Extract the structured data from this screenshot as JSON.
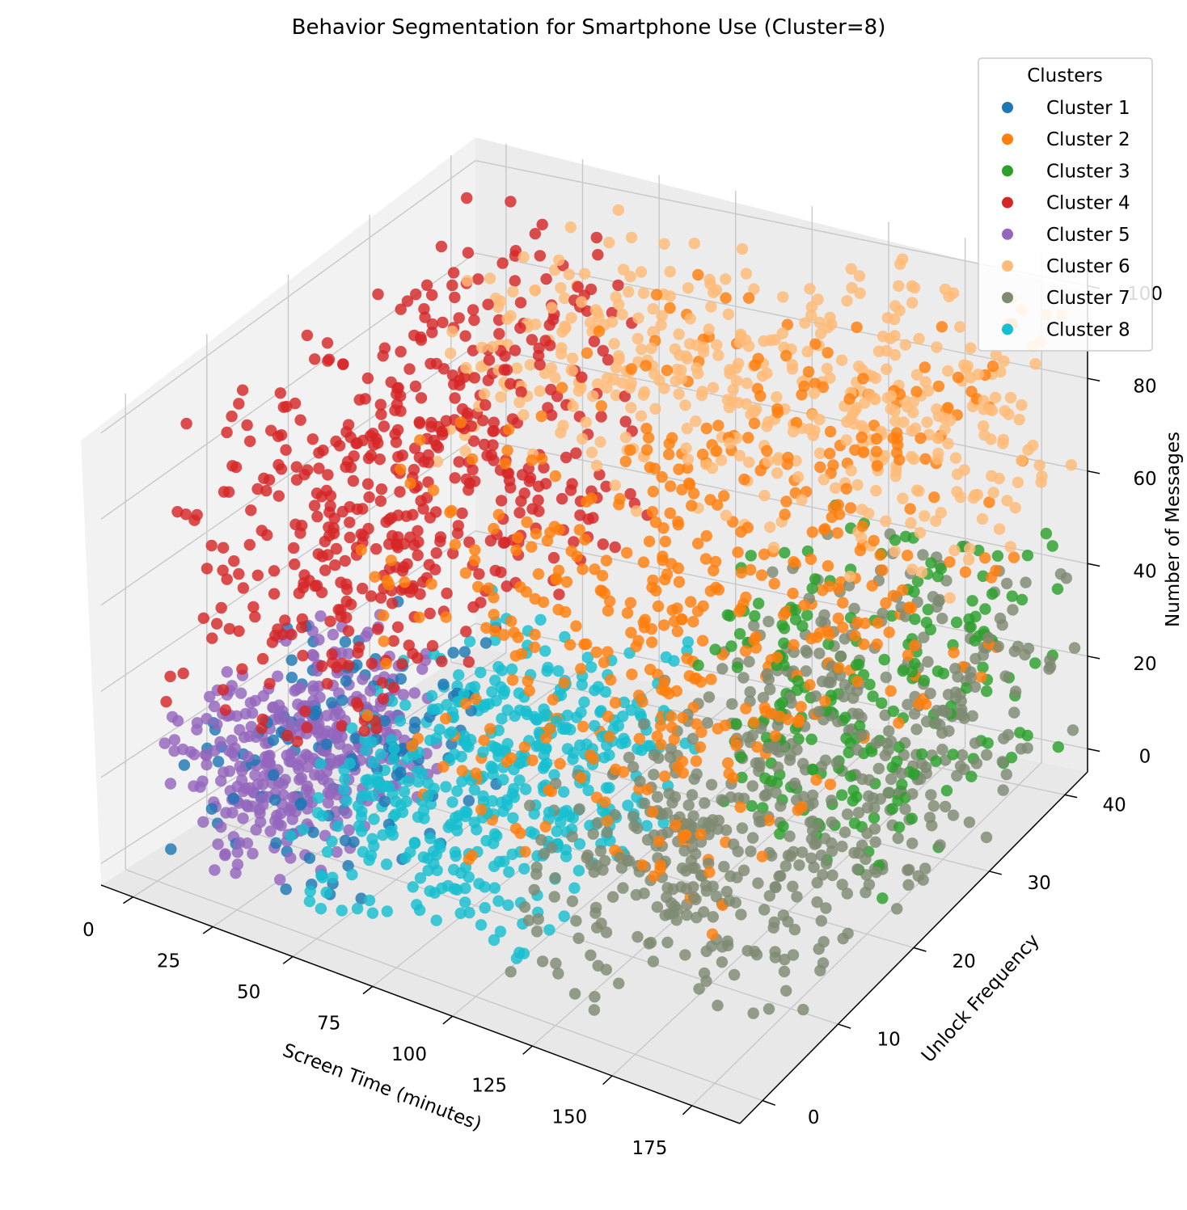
{
  "chart_data": {
    "type": "scatter",
    "projection": "3d",
    "title": "Behavior Segmentation for Smartphone Use (Cluster=8)",
    "xlabel": "Screen Time (minutes)",
    "ylabel": "Unlock Frequency",
    "zlabel": "Number of Messages",
    "xlim": [
      -10,
      190
    ],
    "ylim": [
      -3,
      43
    ],
    "zlim": [
      -5,
      105
    ],
    "xticks": [
      "0",
      "25",
      "50",
      "75",
      "100",
      "125",
      "150",
      "175"
    ],
    "yticks": [
      "0",
      "10",
      "20",
      "30",
      "40"
    ],
    "zticks": [
      "0",
      "20",
      "40",
      "60",
      "80",
      "100"
    ],
    "grid": true,
    "legend": {
      "title": "Clusters",
      "position": "top-right"
    },
    "series": [
      {
        "name": "Cluster 1",
        "color": "#1f77b4",
        "x_range": [
          0,
          60
        ],
        "y_range": [
          0,
          20
        ],
        "z_range": [
          0,
          40
        ]
      },
      {
        "name": "Cluster 2",
        "color": "#ff7f0e",
        "x_range": [
          60,
          180
        ],
        "y_range": [
          0,
          40
        ],
        "z_range": [
          25,
          100
        ]
      },
      {
        "name": "Cluster 3",
        "color": "#2ca02c",
        "x_range": [
          110,
          185
        ],
        "y_range": [
          20,
          42
        ],
        "z_range": [
          0,
          50
        ]
      },
      {
        "name": "Cluster 4",
        "color": "#d62728",
        "x_range": [
          0,
          60
        ],
        "y_range": [
          0,
          40
        ],
        "z_range": [
          35,
          100
        ]
      },
      {
        "name": "Cluster 5",
        "color": "#9467bd",
        "x_range": [
          0,
          40
        ],
        "y_range": [
          0,
          20
        ],
        "z_range": [
          0,
          35
        ]
      },
      {
        "name": "Cluster 6",
        "color": "#ffbb78",
        "x_range": [
          20,
          190
        ],
        "y_range": [
          25,
          43
        ],
        "z_range": [
          60,
          100
        ]
      },
      {
        "name": "Cluster 7",
        "color": "#7f8a73",
        "x_range": [
          105,
          190
        ],
        "y_range": [
          0,
          43
        ],
        "z_range": [
          0,
          40
        ]
      },
      {
        "name": "Cluster 8",
        "color": "#17becf",
        "x_range": [
          40,
          110
        ],
        "y_range": [
          0,
          25
        ],
        "z_range": [
          0,
          40
        ]
      }
    ]
  }
}
